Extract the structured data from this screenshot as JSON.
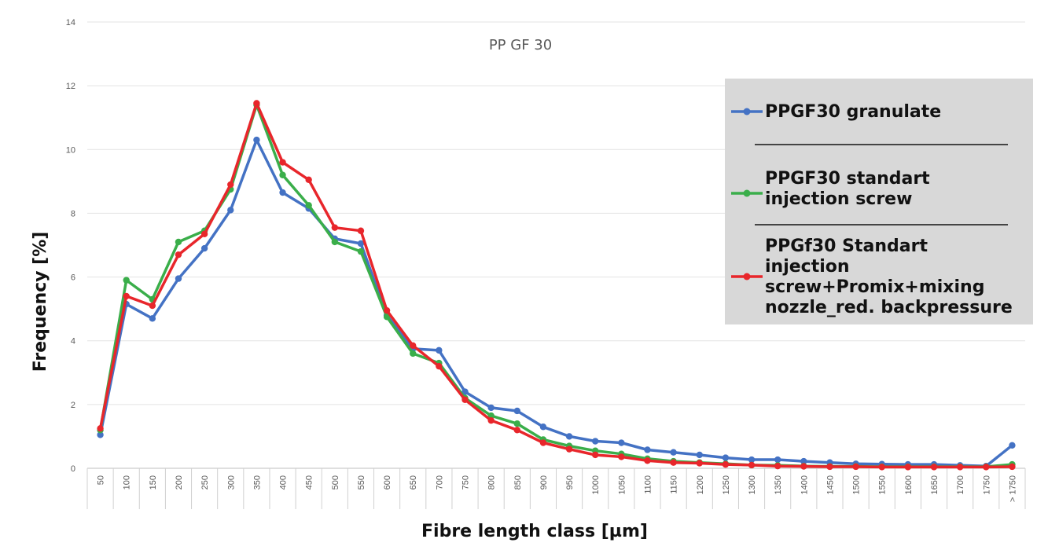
{
  "chart_data": {
    "type": "line",
    "title": "PP GF 30",
    "xlabel": "Fibre length class [µm]",
    "ylabel": "Frequency [%]",
    "ylim": [
      0,
      14
    ],
    "yticks": [
      "0",
      "2",
      "4",
      "6",
      "8",
      "10",
      "12",
      "14"
    ],
    "grid": "horizontal",
    "legend_position": "right",
    "categories": [
      "50",
      "100",
      "150",
      "200",
      "250",
      "300",
      "350",
      "400",
      "450",
      "500",
      "550",
      "600",
      "650",
      "700",
      "750",
      "800",
      "850",
      "900",
      "950",
      "1000",
      "1050",
      "1100",
      "1150",
      "1200",
      "1250",
      "1300",
      "1350",
      "1400",
      "1450",
      "1500",
      "1550",
      "1600",
      "1650",
      "1700",
      "1750",
      "> 1750"
    ],
    "series": [
      {
        "name": "PPGF30 granulate",
        "legend_lines": [
          "PPGF30 granulate"
        ],
        "color": "#4472c4",
        "values": [
          1.05,
          5.15,
          4.7,
          5.95,
          6.9,
          8.1,
          10.3,
          8.65,
          8.15,
          7.2,
          7.05,
          4.8,
          3.75,
          3.7,
          2.4,
          1.9,
          1.8,
          1.3,
          1.0,
          0.85,
          0.8,
          0.58,
          0.5,
          0.42,
          0.33,
          0.27,
          0.27,
          0.22,
          0.18,
          0.14,
          0.13,
          0.12,
          0.12,
          0.09,
          0.07,
          0.72
        ]
      },
      {
        "name": "PPGF30 standart injection screw",
        "legend_lines": [
          "PPGF30 standart",
          "injection screw"
        ],
        "color": "#3aae4a",
        "values": [
          1.2,
          5.9,
          5.3,
          7.1,
          7.45,
          8.75,
          11.4,
          9.2,
          8.25,
          7.1,
          6.8,
          4.75,
          3.6,
          3.3,
          2.2,
          1.65,
          1.4,
          0.9,
          0.7,
          0.55,
          0.45,
          0.3,
          0.22,
          0.18,
          0.14,
          0.1,
          0.09,
          0.07,
          0.06,
          0.06,
          0.05,
          0.05,
          0.05,
          0.05,
          0.05,
          0.12
        ]
      },
      {
        "name": "PPGf30 Standart injection screw+Promix+mixing nozzle_red. backpressure",
        "legend_lines": [
          "PPGf30 Standart",
          "injection",
          "screw+Promix+mixing",
          "nozzle_red. backpressure"
        ],
        "color": "#e8262b",
        "values": [
          1.25,
          5.4,
          5.1,
          6.7,
          7.35,
          8.9,
          11.45,
          9.6,
          9.05,
          7.55,
          7.45,
          4.95,
          3.85,
          3.2,
          2.15,
          1.5,
          1.2,
          0.8,
          0.6,
          0.42,
          0.36,
          0.24,
          0.18,
          0.16,
          0.12,
          0.1,
          0.07,
          0.06,
          0.05,
          0.05,
          0.04,
          0.04,
          0.04,
          0.04,
          0.04,
          0.05
        ]
      }
    ]
  }
}
